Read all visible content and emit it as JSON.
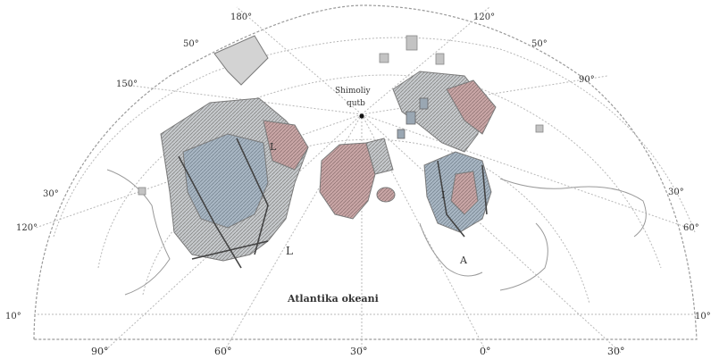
{
  "map": {
    "labels": {
      "arctic_ocean": [
        "Shimoliy",
        "qutb"
      ],
      "atlantic_ocean": "Atlantika okeani",
      "plate_l": "L",
      "plate_l_top": "L",
      "plate_i": "I",
      "plate_a": "A"
    },
    "degree_labels": {
      "top_180": "180°",
      "top_120": "120°",
      "left_50": "50°",
      "right_50": "50°",
      "left_150": "150°",
      "right_90": "90°",
      "left_30": "30°",
      "right_30": "30°",
      "left_120": "120°",
      "right_60": "60°",
      "left_10": "10°",
      "right_10": "10°",
      "bottom_90": "90°",
      "bottom_60": "60°",
      "bottom_30w": "30°",
      "bottom_0": "0°",
      "bottom_30e": "30°"
    },
    "colors": {
      "shield_blue": "#a9b7c4",
      "shield_pink": "#c9a6a6",
      "shield_gray": "#b2b2b2",
      "hatch": "#7d7d7d"
    }
  }
}
